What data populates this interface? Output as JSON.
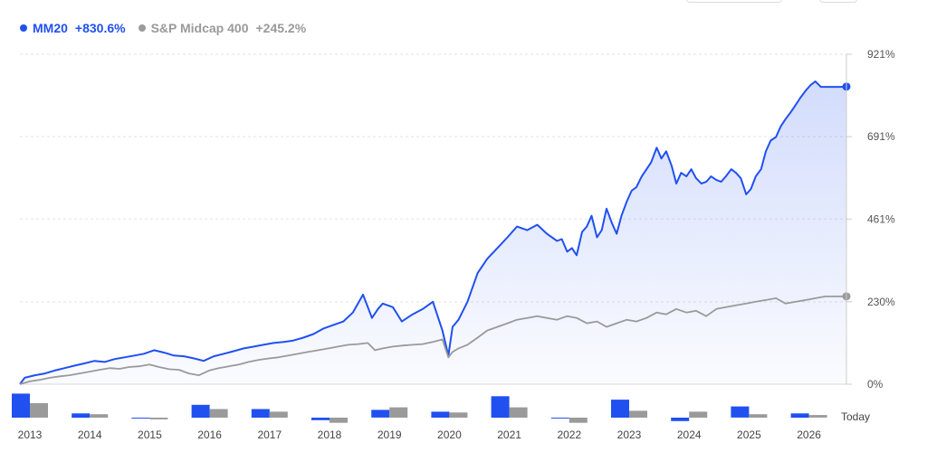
{
  "legend": [
    {
      "name": "MM20",
      "value": "+830.6%",
      "color": "#2050f0"
    },
    {
      "name": "S&P Midcap 400",
      "value": "+245.2%",
      "color": "#9a9a9a"
    }
  ],
  "chart_data": {
    "type": "line",
    "title": "",
    "xlabel": "",
    "ylabel": "",
    "ylim": [
      0,
      921
    ],
    "xlim": [
      2013.0,
      2026.85
    ],
    "y_tick_labels": [
      "921%",
      "691%",
      "461%",
      "230%",
      "0%"
    ],
    "y_tick_values": [
      921,
      691,
      461,
      230,
      0
    ],
    "grid": true,
    "legend_position": "top-left",
    "series": [
      {
        "name": "MM20",
        "color": "#2050f0",
        "x": [
          2013.0,
          2013.08,
          2013.25,
          2013.42,
          2013.58,
          2013.75,
          2013.92,
          2014.08,
          2014.25,
          2014.42,
          2014.58,
          2014.75,
          2014.92,
          2015.08,
          2015.25,
          2015.42,
          2015.58,
          2015.75,
          2015.92,
          2016.08,
          2016.25,
          2016.42,
          2016.58,
          2016.75,
          2016.92,
          2017.08,
          2017.25,
          2017.42,
          2017.58,
          2017.75,
          2017.92,
          2018.08,
          2018.25,
          2018.42,
          2018.58,
          2018.75,
          2018.9,
          2019.0,
          2019.08,
          2019.25,
          2019.4,
          2019.58,
          2019.75,
          2019.92,
          2020.08,
          2020.18,
          2020.25,
          2020.35,
          2020.5,
          2020.67,
          2020.83,
          2021.0,
          2021.17,
          2021.33,
          2021.5,
          2021.67,
          2021.83,
          2022.0,
          2022.08,
          2022.17,
          2022.25,
          2022.33,
          2022.42,
          2022.5,
          2022.58,
          2022.67,
          2022.75,
          2022.83,
          2022.92,
          2023.0,
          2023.08,
          2023.17,
          2023.25,
          2023.33,
          2023.42,
          2023.5,
          2023.58,
          2023.67,
          2023.75,
          2023.83,
          2023.92,
          2024.0,
          2024.08,
          2024.17,
          2024.25,
          2024.33,
          2024.42,
          2024.5,
          2024.58,
          2024.67,
          2024.75,
          2024.83,
          2024.92,
          2025.0,
          2025.08,
          2025.17,
          2025.25,
          2025.33,
          2025.42,
          2025.5,
          2025.58,
          2025.67,
          2025.75,
          2025.83,
          2025.92,
          2026.0,
          2026.08,
          2026.17,
          2026.25,
          2026.33,
          2026.42,
          2026.5,
          2026.58,
          2026.67,
          2026.75,
          2026.85
        ],
        "values": [
          0,
          18,
          25,
          30,
          38,
          45,
          52,
          58,
          65,
          62,
          70,
          75,
          80,
          85,
          95,
          88,
          80,
          78,
          72,
          65,
          78,
          85,
          92,
          100,
          105,
          110,
          115,
          118,
          122,
          130,
          140,
          155,
          165,
          175,
          200,
          250,
          185,
          210,
          225,
          215,
          175,
          195,
          210,
          230,
          150,
          80,
          160,
          180,
          230,
          310,
          350,
          380,
          410,
          440,
          430,
          445,
          420,
          400,
          405,
          370,
          380,
          360,
          425,
          440,
          470,
          410,
          430,
          490,
          450,
          420,
          470,
          510,
          540,
          550,
          580,
          600,
          620,
          660,
          630,
          650,
          610,
          560,
          590,
          580,
          600,
          575,
          560,
          565,
          580,
          570,
          565,
          580,
          600,
          590,
          575,
          530,
          545,
          580,
          600,
          650,
          680,
          690,
          720,
          740,
          760,
          780,
          800,
          820,
          835,
          845,
          830,
          830,
          830,
          830,
          830,
          830.6
        ]
      },
      {
        "name": "S&P Midcap 400",
        "color": "#9a9a9a",
        "x": [
          2013.0,
          2013.17,
          2013.33,
          2013.5,
          2013.67,
          2013.83,
          2014.0,
          2014.17,
          2014.33,
          2014.5,
          2014.67,
          2014.83,
          2015.0,
          2015.17,
          2015.33,
          2015.5,
          2015.67,
          2015.83,
          2016.0,
          2016.17,
          2016.33,
          2016.5,
          2016.67,
          2016.83,
          2017.0,
          2017.17,
          2017.33,
          2017.5,
          2017.67,
          2017.83,
          2018.0,
          2018.17,
          2018.33,
          2018.5,
          2018.67,
          2018.83,
          2018.95,
          2019.08,
          2019.25,
          2019.42,
          2019.58,
          2019.75,
          2019.92,
          2020.08,
          2020.18,
          2020.25,
          2020.35,
          2020.5,
          2020.67,
          2020.83,
          2021.0,
          2021.17,
          2021.33,
          2021.5,
          2021.67,
          2021.83,
          2022.0,
          2022.17,
          2022.33,
          2022.5,
          2022.67,
          2022.83,
          2023.0,
          2023.17,
          2023.33,
          2023.5,
          2023.67,
          2023.83,
          2024.0,
          2024.17,
          2024.33,
          2024.5,
          2024.67,
          2024.83,
          2025.0,
          2025.17,
          2025.33,
          2025.5,
          2025.67,
          2025.83,
          2026.0,
          2026.17,
          2026.33,
          2026.5,
          2026.67,
          2026.85
        ],
        "values": [
          0,
          8,
          12,
          18,
          22,
          25,
          30,
          35,
          40,
          45,
          43,
          48,
          50,
          55,
          48,
          42,
          40,
          30,
          25,
          38,
          45,
          50,
          55,
          62,
          68,
          72,
          75,
          80,
          85,
          90,
          95,
          100,
          105,
          110,
          112,
          115,
          95,
          100,
          105,
          108,
          110,
          112,
          118,
          125,
          75,
          90,
          100,
          110,
          130,
          150,
          160,
          170,
          180,
          185,
          190,
          185,
          180,
          190,
          185,
          170,
          175,
          160,
          170,
          180,
          175,
          185,
          200,
          195,
          210,
          200,
          205,
          190,
          210,
          215,
          220,
          225,
          230,
          235,
          240,
          225,
          230,
          235,
          240,
          245,
          245,
          245.2
        ]
      }
    ],
    "bar_data": {
      "type": "bar",
      "categories": [
        "2013",
        "2014",
        "2015",
        "2016",
        "2017",
        "2018",
        "2019",
        "2020",
        "2021",
        "2022",
        "2023",
        "2024",
        "2025",
        "2026"
      ],
      "today_label": "Today",
      "series": [
        {
          "name": "MM20",
          "values": [
            28,
            5,
            -1,
            15,
            10,
            -3,
            9,
            7,
            25,
            -1,
            21,
            -4,
            13,
            5
          ]
        },
        {
          "name": "S&P Midcap 400",
          "values": [
            17,
            4,
            -2,
            10,
            7,
            -6,
            12,
            6,
            12,
            -6,
            8,
            7,
            4,
            3
          ]
        }
      ]
    }
  }
}
